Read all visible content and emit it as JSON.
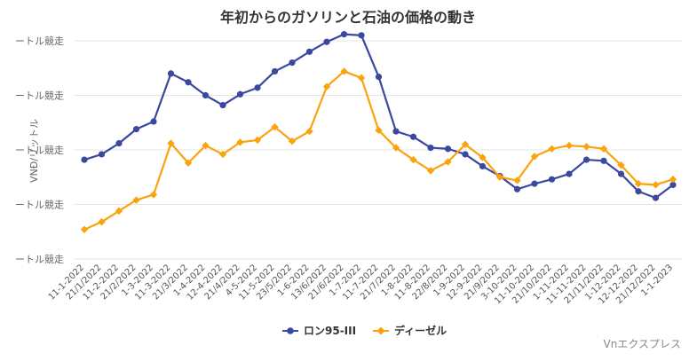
{
  "chart_data": {
    "type": "line",
    "title": "年初からのガソリンと石油の価格の動き",
    "ylabel": "VNĐ/リットル",
    "y_tick_labels": [
      "ートル競走",
      "ートル競走",
      "ートル競走",
      "ートル競走",
      "ートル競走"
    ],
    "y_ticks": [
      40000,
      35000,
      30000,
      25000,
      20000
    ],
    "ylim": [
      20000,
      40000
    ],
    "grid": true,
    "legend_position": "bottom",
    "categories": [
      "11-1-2022",
      "21/1/2022",
      "11-2-2022",
      "21/2/2022",
      "1-3-2022",
      "11-3-2022",
      "21/3/2022",
      "1-4-2022",
      "12-4-2022",
      "21/4/2022",
      "4-5-2022",
      "11-5-2022",
      "23/5/2022",
      "1-6-2022",
      "13/6/2022",
      "21/6/2022",
      "1-7-2022",
      "11-7-2022",
      "21/7/2022",
      "1-8-2022",
      "11-8-2022",
      "22/8/2022",
      "1-9-2022",
      "12-9-2022",
      "21/9/2022",
      "3-10-2022",
      "11-10-2022",
      "21/10/2022",
      "1-11-2022",
      "11-11-2022",
      "21/11/2022",
      "1-12-2022",
      "12-12-2022",
      "21/12/2022",
      "1-1-2023"
    ],
    "series": [
      {
        "name": "ロン95-III",
        "color": "#3a48a0",
        "values": [
          29100,
          29600,
          30600,
          31900,
          32600,
          37000,
          36200,
          35000,
          34100,
          35100,
          35700,
          37200,
          38000,
          39000,
          39900,
          40600,
          40500,
          36700,
          31700,
          31200,
          30200,
          30100,
          29600,
          28500,
          27600,
          26400,
          26900,
          27300,
          27800,
          29100,
          29000,
          27800,
          26200,
          25600,
          26800
        ]
      },
      {
        "name": "ディーゼル",
        "color": "#f9a30e",
        "values": [
          22700,
          23400,
          24400,
          25400,
          25900,
          30600,
          28800,
          30400,
          29600,
          30700,
          30900,
          32100,
          30800,
          31700,
          35800,
          37200,
          36600,
          31800,
          30200,
          29100,
          28100,
          28900,
          30500,
          29300,
          27500,
          27200,
          29400,
          30100,
          30400,
          30300,
          30100,
          28600,
          26900,
          26800,
          27300
        ]
      }
    ],
    "source": "Vnエクスプレス"
  }
}
